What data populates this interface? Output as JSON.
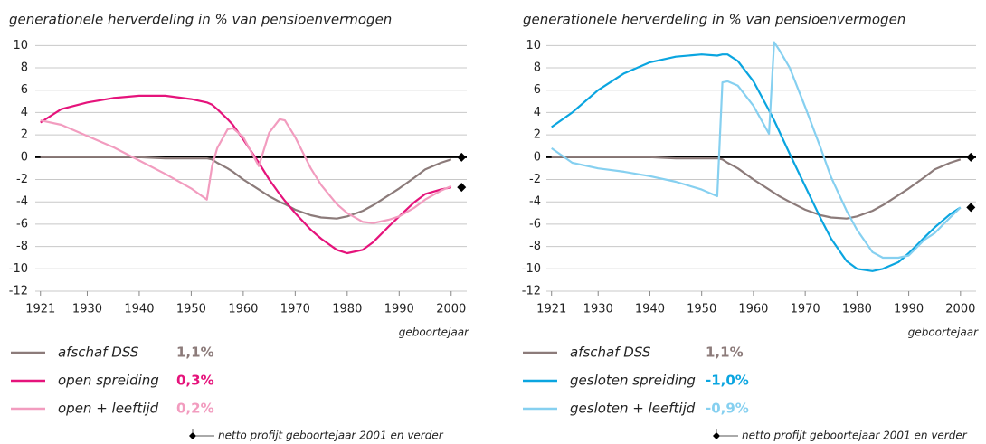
{
  "chart_data": [
    {
      "type": "line",
      "title": "generationele herverdeling in % van pensioenvermogen",
      "x_label": "geboortejaar",
      "xlim": [
        1920,
        2003
      ],
      "xticks": [
        1921,
        1930,
        1940,
        1950,
        1960,
        1970,
        1980,
        1990,
        2000
      ],
      "ylim": [
        -12,
        11
      ],
      "yticks": [
        -12,
        -10,
        -8,
        -6,
        -4,
        -2,
        0,
        2,
        4,
        6,
        8,
        10
      ],
      "grid": true,
      "x": [
        1921,
        1925,
        1930,
        1935,
        1940,
        1945,
        1950,
        1953,
        1954,
        1955,
        1957,
        1958,
        1960,
        1963,
        1965,
        1967,
        1968,
        1970,
        1973,
        1975,
        1978,
        1980,
        1983,
        1985,
        1988,
        1990,
        1993,
        1995,
        1998,
        2000
      ],
      "series": [
        {
          "name": "afschaf DSS",
          "color": "#8c7b7a",
          "profit_label": "1,1%",
          "values": [
            0,
            0,
            0,
            0,
            0,
            -0.1,
            -0.1,
            -0.1,
            -0.2,
            -0.5,
            -1.0,
            -1.3,
            -2.0,
            -2.9,
            -3.5,
            -4.0,
            -4.2,
            -4.7,
            -5.2,
            -5.4,
            -5.5,
            -5.3,
            -4.8,
            -4.3,
            -3.4,
            -2.8,
            -1.8,
            -1.1,
            -0.5,
            -0.2
          ]
        },
        {
          "name": "open spreiding",
          "color": "#e5137b",
          "profit_label": "0,3%",
          "values": [
            3.1,
            4.3,
            4.9,
            5.3,
            5.5,
            5.5,
            5.2,
            4.9,
            4.7,
            4.3,
            3.4,
            2.9,
            1.6,
            -0.5,
            -2.0,
            -3.3,
            -3.9,
            -5.0,
            -6.5,
            -7.3,
            -8.3,
            -8.6,
            -8.3,
            -7.6,
            -6.2,
            -5.3,
            -4.0,
            -3.3,
            -2.9,
            -2.7
          ]
        },
        {
          "name": "open + leeftijd",
          "color": "#f29cbf",
          "profit_label": "0,2%",
          "values": [
            3.3,
            2.9,
            1.9,
            0.9,
            -0.3,
            -1.5,
            -2.8,
            -3.8,
            -0.8,
            0.8,
            2.5,
            2.6,
            1.8,
            -0.8,
            2.2,
            3.4,
            3.3,
            1.8,
            -1.0,
            -2.5,
            -4.2,
            -5.0,
            -5.8,
            -5.9,
            -5.6,
            -5.3,
            -4.5,
            -3.8,
            -3.0,
            -2.6
          ]
        }
      ],
      "markers": {
        "x": [
          2002,
          2002
        ],
        "values": [
          0,
          -2.7
        ],
        "color": "#000000"
      },
      "footnote": "netto profijt geboortejaar 2001 en verder"
    },
    {
      "type": "line",
      "title": "generationele herverdeling in % van pensioenvermogen",
      "x_label": "geboortejaar",
      "xlim": [
        1920,
        2003
      ],
      "xticks": [
        1921,
        1930,
        1940,
        1950,
        1960,
        1970,
        1980,
        1990,
        2000
      ],
      "ylim": [
        -12,
        11
      ],
      "yticks": [
        -12,
        -10,
        -8,
        -6,
        -4,
        -2,
        0,
        2,
        4,
        6,
        8,
        10
      ],
      "grid": true,
      "x": [
        1921,
        1925,
        1930,
        1935,
        1940,
        1945,
        1950,
        1953,
        1954,
        1955,
        1957,
        1960,
        1963,
        1964,
        1965,
        1967,
        1970,
        1973,
        1975,
        1978,
        1980,
        1983,
        1985,
        1988,
        1990,
        1993,
        1995,
        1998,
        2000
      ],
      "series": [
        {
          "name": "afschaf DSS",
          "color": "#8c7b7a",
          "profit_label": "1,1%",
          "values": [
            0,
            0,
            0,
            0,
            0,
            -0.1,
            -0.1,
            -0.1,
            -0.2,
            -0.5,
            -1.0,
            -2.0,
            -2.9,
            -3.2,
            -3.5,
            -4.0,
            -4.7,
            -5.2,
            -5.4,
            -5.5,
            -5.3,
            -4.8,
            -4.3,
            -3.4,
            -2.8,
            -1.8,
            -1.1,
            -0.5,
            -0.2
          ]
        },
        {
          "name": "gesloten spreiding",
          "color": "#0aa5e0",
          "profit_label": "-1,0%",
          "values": [
            2.7,
            4.0,
            6.0,
            7.5,
            8.5,
            9.0,
            9.2,
            9.1,
            9.2,
            9.2,
            8.6,
            6.8,
            4.2,
            3.3,
            2.3,
            0.3,
            -2.6,
            -5.5,
            -7.3,
            -9.3,
            -10.0,
            -10.2,
            -10.0,
            -9.4,
            -8.6,
            -7.2,
            -6.3,
            -5.1,
            -4.5
          ]
        },
        {
          "name": "gesloten + leeftijd",
          "color": "#86d0f0",
          "profit_label": "-0,9%",
          "values": [
            0.8,
            -0.5,
            -1.0,
            -1.3,
            -1.7,
            -2.2,
            -2.9,
            -3.5,
            6.7,
            6.8,
            6.4,
            4.6,
            2.1,
            10.3,
            9.6,
            8.0,
            4.5,
            0.8,
            -1.8,
            -4.8,
            -6.5,
            -8.5,
            -9.0,
            -9.0,
            -8.8,
            -7.4,
            -6.8,
            -5.4,
            -4.5
          ]
        }
      ],
      "markers": {
        "x": [
          2002,
          2002
        ],
        "values": [
          0,
          -4.5
        ],
        "color": "#000000"
      },
      "footnote": "netto profijt geboortejaar 2001 en verder"
    }
  ]
}
